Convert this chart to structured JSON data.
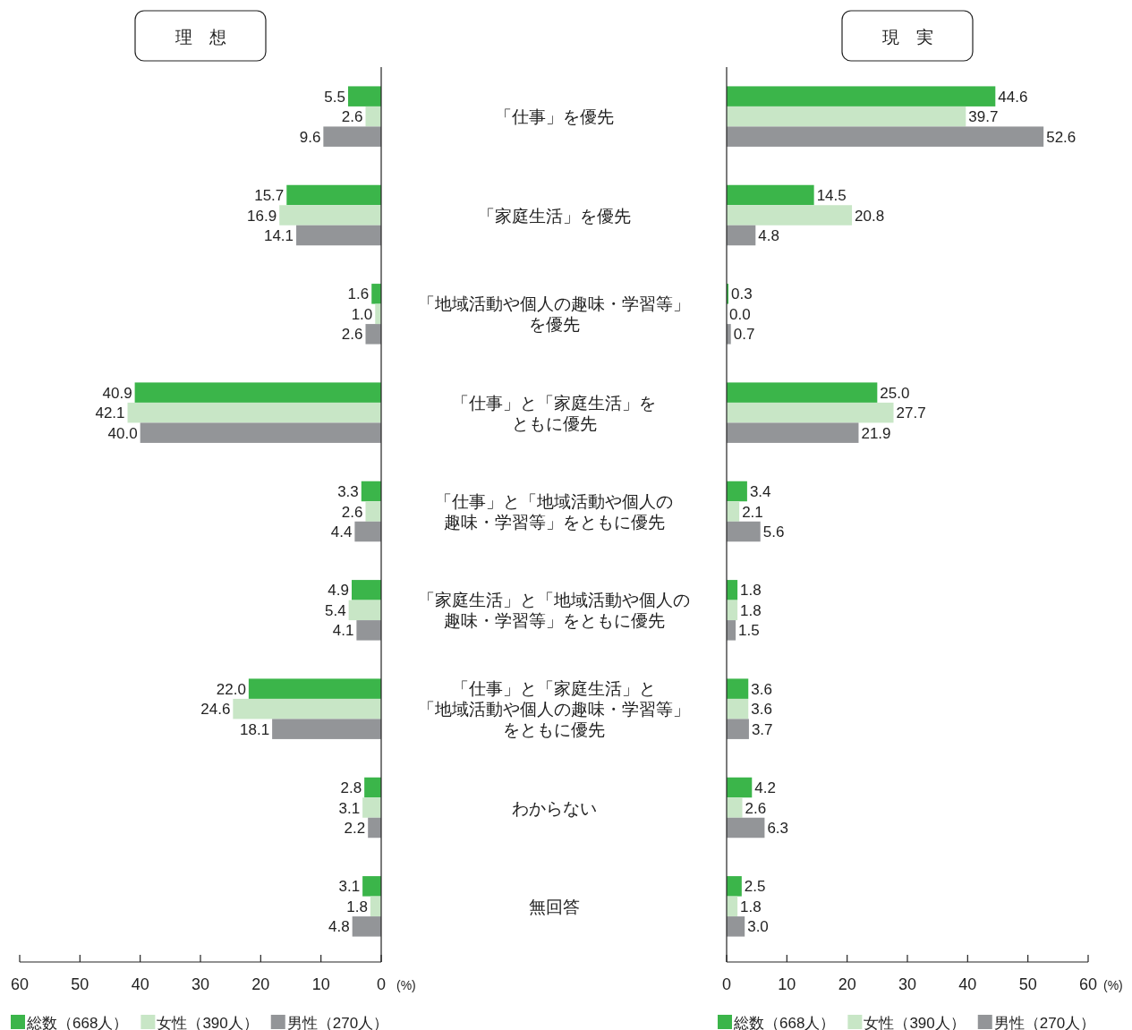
{
  "chart_data": [
    {
      "type": "bar",
      "orientation": "horizontal",
      "title": "理　想",
      "xlabel": "(%)",
      "legend": "bottom",
      "categories": [
        "「仕事」を優先",
        "「家庭生活」を優先",
        "「地域活動や個人の趣味・学習等」を優先",
        "「仕事」と「家庭生活」をともに優先",
        "「仕事」と「地域活動や個人の趣味・学習等」をともに優先",
        "「家庭生活」と「地域活動や個人の趣味・学習等」をともに優先",
        "「仕事」と「家庭生活」と「地域活動や個人の趣味・学習等」をともに優先",
        "わからない",
        "無回答"
      ],
      "xlim": [
        60,
        0
      ],
      "xticks": [
        60,
        50,
        40,
        30,
        20,
        10,
        0
      ],
      "series": [
        {
          "name": "総数（668人）",
          "color": "#3bb54a",
          "values": [
            5.5,
            15.7,
            1.6,
            40.9,
            3.3,
            4.9,
            22.0,
            2.8,
            3.1
          ],
          "value_labels": [
            "5.5",
            "15.7",
            "1.6",
            "40.9",
            "3.3",
            "4.9",
            "22.0",
            "2.8",
            "3.1"
          ]
        },
        {
          "name": "女性（390人）",
          "color": "#c8e6c6",
          "values": [
            2.6,
            16.9,
            1.0,
            42.1,
            2.6,
            5.4,
            24.6,
            3.1,
            1.8
          ],
          "value_labels": [
            "2.6",
            "16.9",
            "1.0",
            "42.1",
            "2.6",
            "5.4",
            "24.6",
            "3.1",
            "1.8"
          ]
        },
        {
          "name": "男性（270人）",
          "color": "#939598",
          "values": [
            9.6,
            14.1,
            2.6,
            40.0,
            4.4,
            4.1,
            18.1,
            2.2,
            4.8
          ],
          "value_labels": [
            "9.6",
            "14.1",
            "2.6",
            "40.0",
            "4.4",
            "4.1",
            "18.1",
            "2.2",
            "4.8"
          ]
        }
      ]
    },
    {
      "type": "bar",
      "orientation": "horizontal",
      "title": "現　実",
      "xlabel": "(%)",
      "legend": "bottom",
      "categories": [
        null,
        null,
        null,
        null,
        null,
        null,
        null,
        null,
        null
      ],
      "xlim": [
        0,
        60
      ],
      "xticks": [
        0,
        10,
        20,
        30,
        40,
        50,
        60
      ],
      "series": [
        {
          "name": "総数（668人）",
          "color": "#3bb54a",
          "values": [
            44.6,
            14.5,
            0.3,
            25.0,
            3.4,
            1.8,
            3.6,
            4.2,
            2.5
          ],
          "value_labels": [
            "44.6",
            "14.5",
            "0.3",
            "25.0",
            "3.4",
            "1.8",
            "3.6",
            "4.2",
            "2.5"
          ]
        },
        {
          "name": "女性（390人）",
          "color": "#c8e6c6",
          "values": [
            39.7,
            20.8,
            0.0,
            27.7,
            2.1,
            1.8,
            3.6,
            2.6,
            1.8
          ],
          "value_labels": [
            "39.7",
            "20.8",
            "0.0",
            "27.7",
            "2.1",
            "1.8",
            "3.6",
            "2.6",
            "1.8"
          ]
        },
        {
          "name": "男性（270人）",
          "color": "#939598",
          "values": [
            52.6,
            4.8,
            0.7,
            21.9,
            5.6,
            1.5,
            3.7,
            6.3,
            3.0
          ],
          "value_labels": [
            "52.6",
            "4.8",
            "0.7",
            "21.9",
            "5.6",
            "1.5",
            "3.7",
            "6.3",
            "3.0"
          ]
        }
      ]
    }
  ]
}
